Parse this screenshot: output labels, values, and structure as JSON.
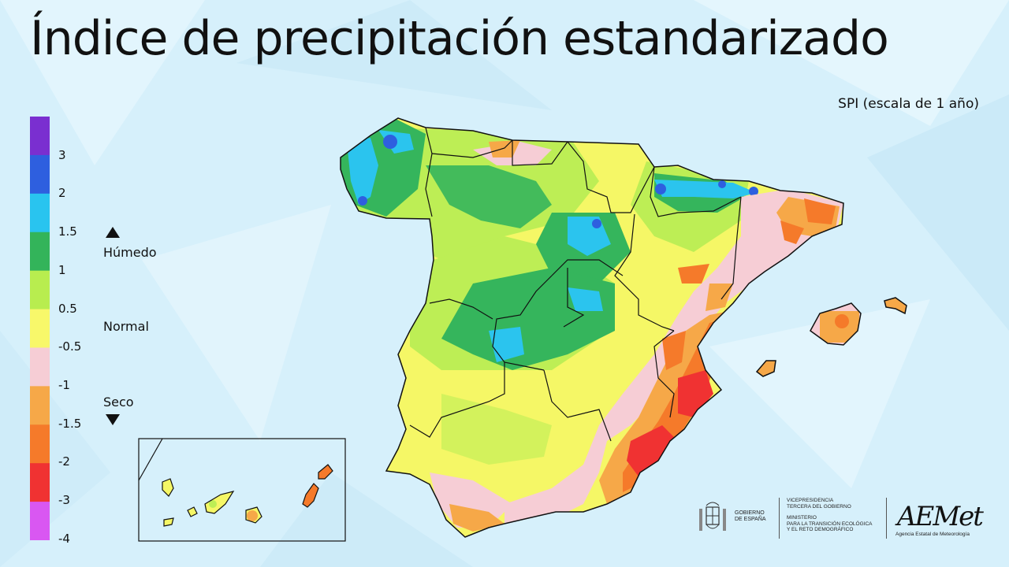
{
  "title": "Índice de precipitación estandarizado",
  "subtitle": "SPI (escala de 1 año)",
  "legend": {
    "classes": [
      {
        "color": "#7a2fd0"
      },
      {
        "color": "#2e5fdf"
      },
      {
        "color": "#29c4ef"
      },
      {
        "color": "#33b45a"
      },
      {
        "color": "#b8ed4f"
      },
      {
        "color": "#f8f86a"
      },
      {
        "color": "#f6cdd5"
      },
      {
        "color": "#f6a848"
      },
      {
        "color": "#f57a2a"
      },
      {
        "color": "#f03232"
      },
      {
        "color": "#d957f2"
      }
    ],
    "ticks": [
      "3",
      "2",
      "1.5",
      "1",
      "0.5",
      "-0.5",
      "-1",
      "-1.5",
      "-2",
      "-3",
      "-4"
    ],
    "wet_label": "Húmedo",
    "normal_label": "Normal",
    "dry_label": "Seco"
  },
  "logos": {
    "gobierno": "GOBIERNO\nDE ESPAÑA",
    "vicepresidencia": "VICEPRESIDENCIA\nTERCERA DEL GOBIERNO",
    "ministerio": "MINISTERIO\nPARA LA TRANSICIÓN ECOLÓGICA\nY EL RETO DEMOGRÁFICO",
    "aemet": "AEMet",
    "aemet_sub": "Agencia Estatal de Meteorología"
  }
}
